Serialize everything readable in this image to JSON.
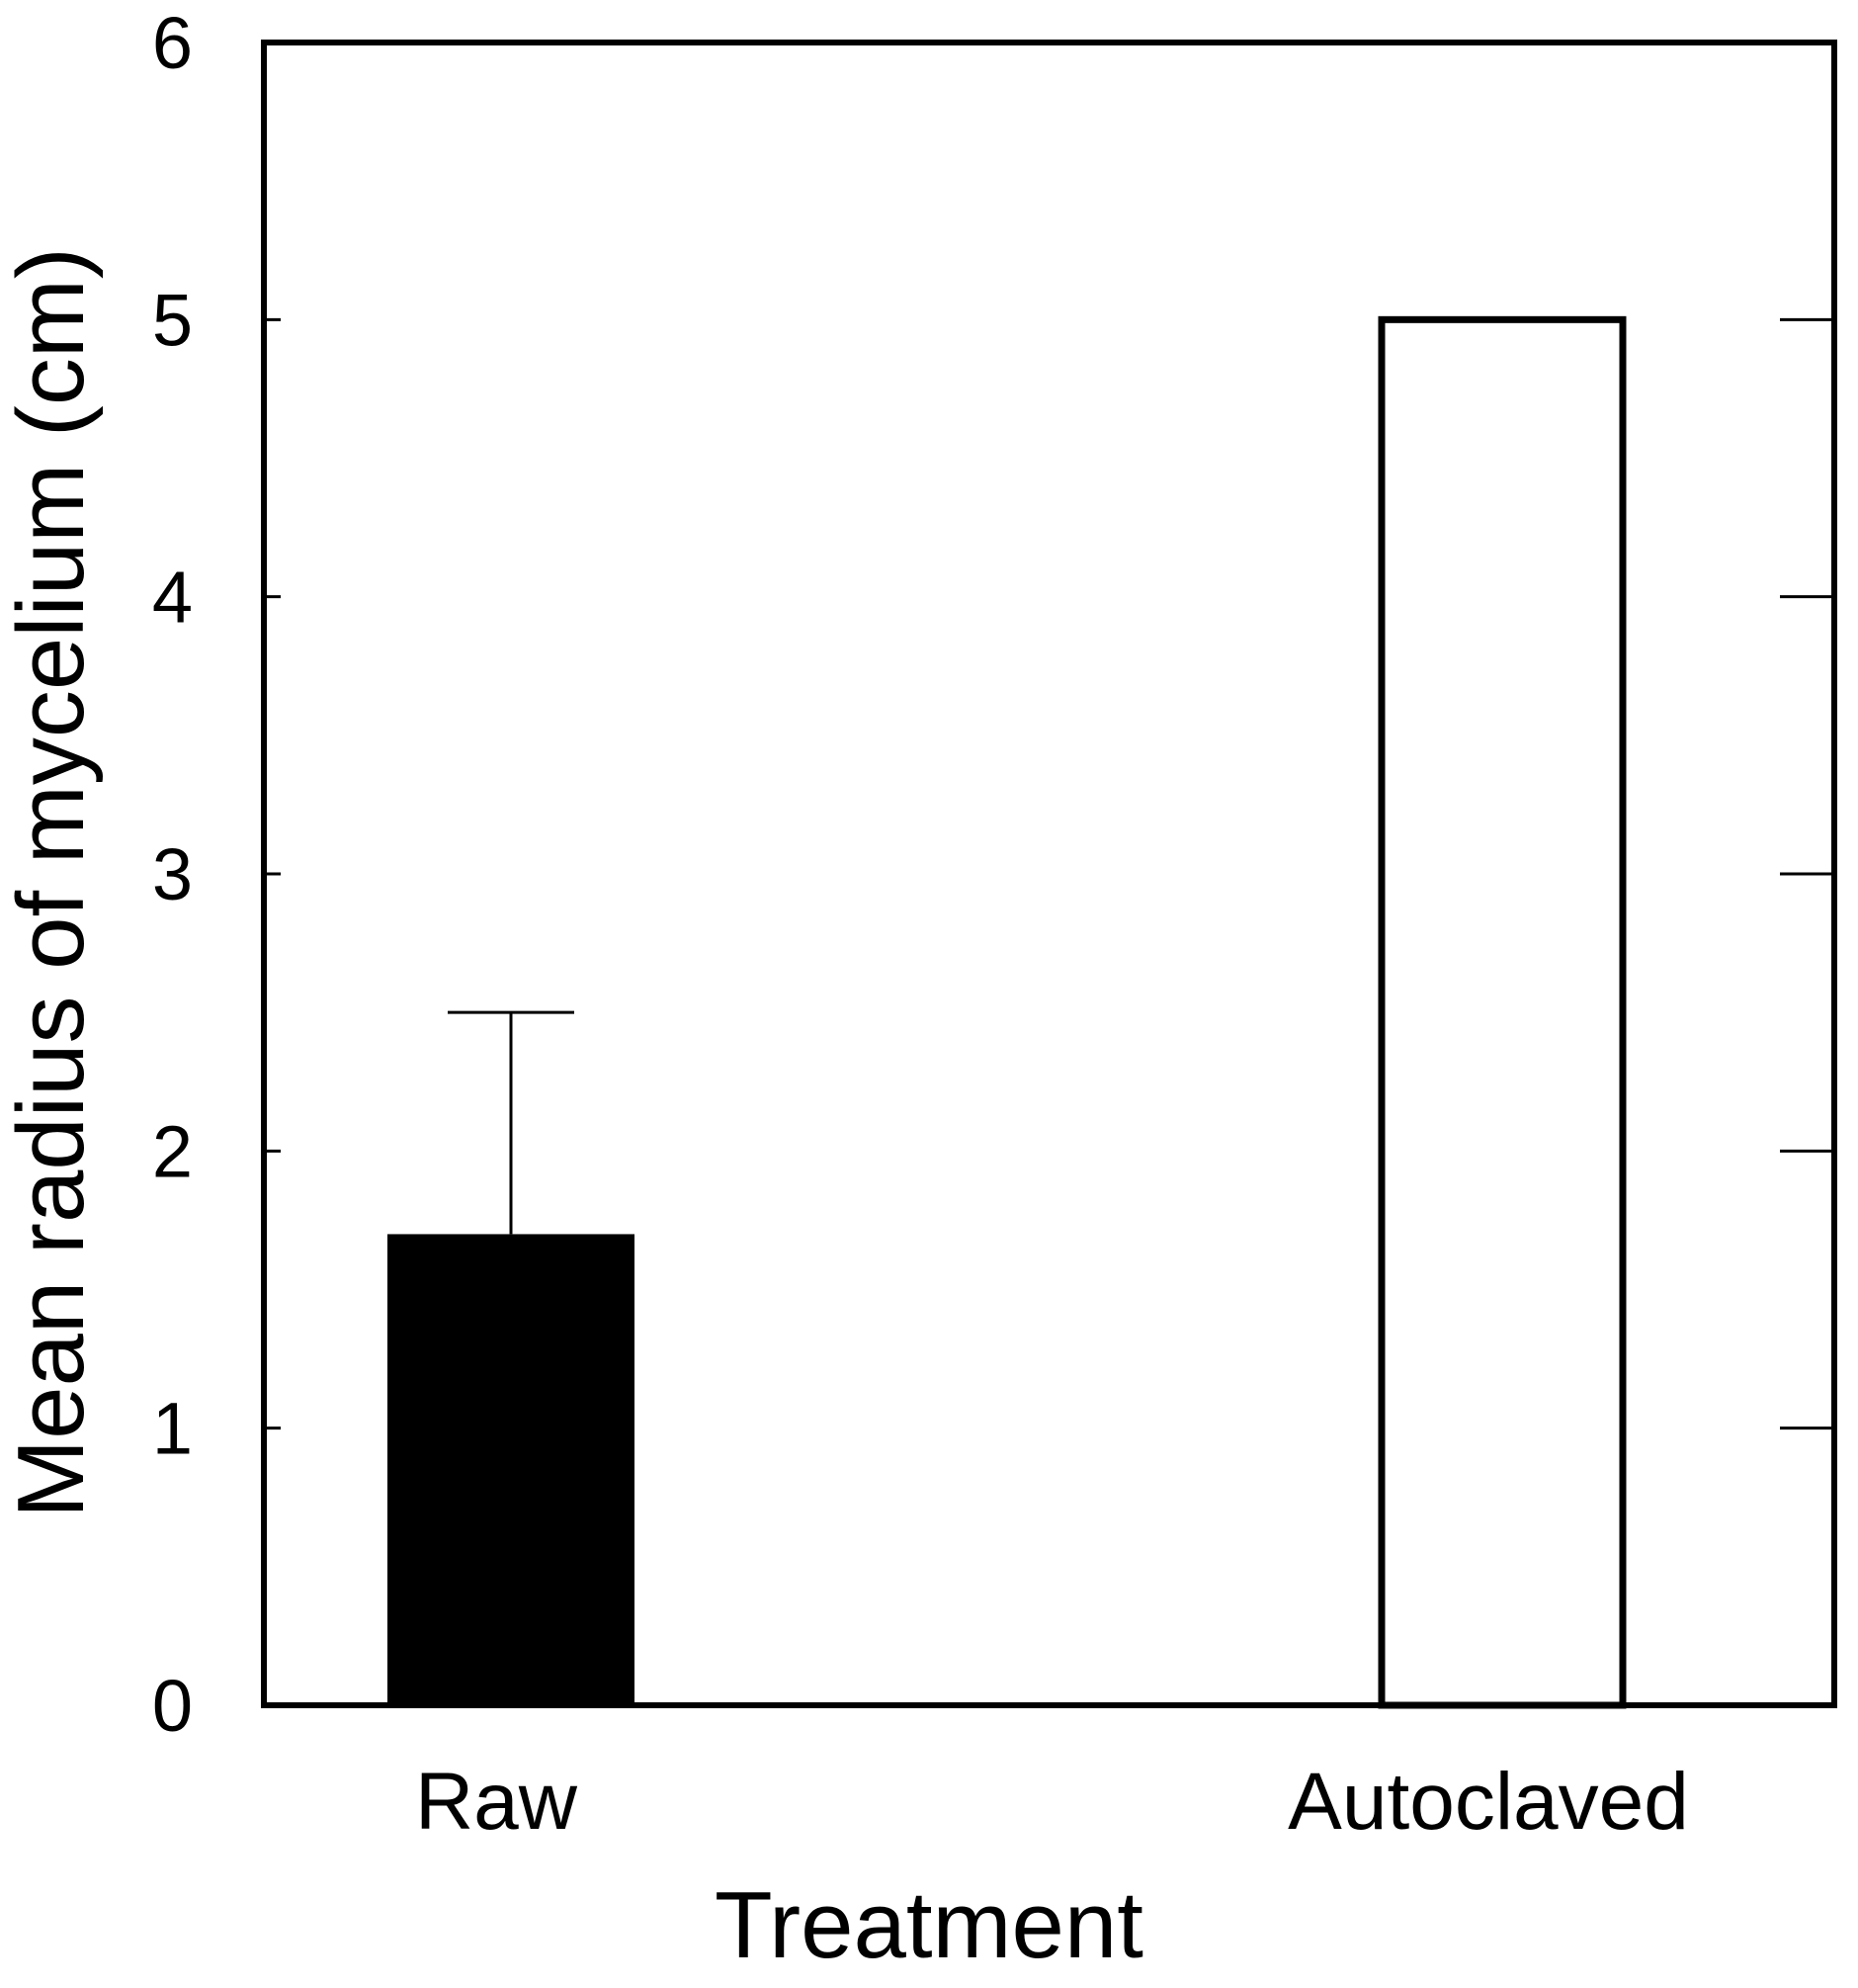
{
  "chart_data": {
    "type": "bar",
    "title": "",
    "xlabel": "Treatment",
    "ylabel": "Mean radius of mycelium (cm)",
    "categories": [
      "Raw",
      "Autoclaved"
    ],
    "values": [
      1.7,
      5.0
    ],
    "error_bars": [
      0.8,
      null
    ],
    "bar_styles": [
      "filled-black",
      "outlined-white"
    ],
    "ylim": [
      0,
      6
    ],
    "yticks": [
      "0",
      "1",
      "2",
      "3",
      "4",
      "5",
      "6"
    ],
    "grid": false,
    "legend": null,
    "colors": {
      "filled": "#000000",
      "outline": "#000000",
      "background": "#ffffff"
    }
  }
}
